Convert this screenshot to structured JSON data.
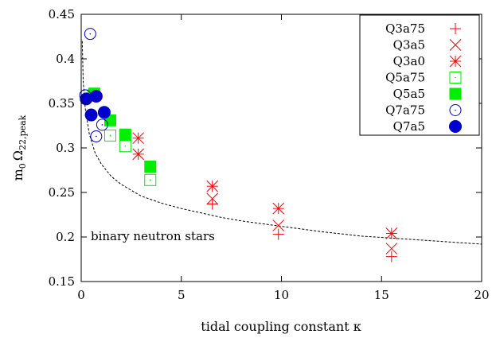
{
  "chart_data": {
    "type": "scatter",
    "title": "",
    "xlabel": "tidal coupling constant κ",
    "ylabel_main": "m",
    "ylabel_sub0": "0",
    "ylabel_omega": "Ω",
    "ylabel_sub": "22,peak",
    "xlim": [
      0,
      20
    ],
    "ylim": [
      0.15,
      0.45
    ],
    "xticks": [
      0,
      5,
      10,
      15,
      20
    ],
    "xtick_labels": [
      "0",
      "5",
      "10",
      "15",
      "20"
    ],
    "yticks": [
      0.15,
      0.2,
      0.25,
      0.3,
      0.35,
      0.4,
      0.45
    ],
    "ytick_labels": [
      "0.15",
      "0.2",
      "0.25",
      "0.3",
      "0.35",
      "0.4",
      "0.45"
    ],
    "grid": false,
    "legend_position": "top-right",
    "annotation": "binary neutron stars",
    "fit_curve": {
      "style": "dashed",
      "points": [
        [
          0.05,
          0.42
        ],
        [
          0.1,
          0.375
        ],
        [
          0.2,
          0.345
        ],
        [
          0.4,
          0.316
        ],
        [
          0.7,
          0.294
        ],
        [
          1,
          0.282
        ],
        [
          1.5,
          0.268
        ],
        [
          2,
          0.259
        ],
        [
          3,
          0.246
        ],
        [
          4,
          0.238
        ],
        [
          5,
          0.232
        ],
        [
          6,
          0.227
        ],
        [
          7,
          0.222
        ],
        [
          8,
          0.218
        ],
        [
          9,
          0.215
        ],
        [
          10,
          0.212
        ],
        [
          12,
          0.206
        ],
        [
          14,
          0.201
        ],
        [
          16,
          0.198
        ],
        [
          18,
          0.195
        ],
        [
          20,
          0.192
        ]
      ]
    },
    "series": [
      {
        "name": "Q3a75",
        "marker": "plus",
        "color": "#ff0000",
        "points": [
          [
            6.55,
            0.237
          ],
          [
            9.85,
            0.203
          ],
          [
            15.5,
            0.178
          ]
        ]
      },
      {
        "name": "Q3a5",
        "marker": "cross",
        "color": "#ff0000",
        "points": [
          [
            6.55,
            0.243
          ],
          [
            9.85,
            0.213
          ],
          [
            15.5,
            0.187
          ]
        ]
      },
      {
        "name": "Q3a0",
        "marker": "star",
        "color": "#ff0000",
        "points": [
          [
            2.85,
            0.311
          ],
          [
            2.85,
            0.293
          ],
          [
            6.55,
            0.257
          ],
          [
            9.85,
            0.232
          ],
          [
            15.5,
            0.204
          ]
        ]
      },
      {
        "name": "Q5a75",
        "marker": "open-square",
        "color": "#00ee00",
        "points": [
          [
            0.6,
            0.359
          ],
          [
            1.45,
            0.314
          ],
          [
            2.2,
            0.302
          ],
          [
            3.45,
            0.264
          ]
        ]
      },
      {
        "name": "Q5a5",
        "marker": "filled-square",
        "color": "#00ee00",
        "points": [
          [
            0.65,
            0.361
          ],
          [
            1.45,
            0.331
          ],
          [
            2.2,
            0.315
          ],
          [
            3.45,
            0.279
          ]
        ]
      },
      {
        "name": "Q7a75",
        "marker": "open-circle",
        "color": "#0000cc",
        "points": [
          [
            0.45,
            0.428
          ],
          [
            0.2,
            0.359
          ],
          [
            1.05,
            0.326
          ],
          [
            0.75,
            0.313
          ]
        ]
      },
      {
        "name": "Q7a5",
        "marker": "filled-circle",
        "color": "#0000cc",
        "points": [
          [
            0.25,
            0.355
          ],
          [
            0.75,
            0.358
          ],
          [
            1.15,
            0.34
          ],
          [
            0.5,
            0.337
          ]
        ]
      }
    ]
  }
}
